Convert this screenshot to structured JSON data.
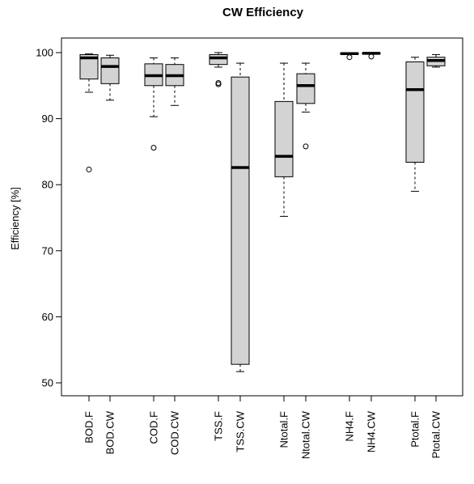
{
  "chart_data": {
    "type": "box",
    "title": "CW Efficiency",
    "xlabel": "",
    "ylabel": "Efficiency [%]",
    "ylim": [
      48,
      102
    ],
    "yticks": [
      50,
      60,
      70,
      80,
      90,
      100
    ],
    "box_color": "#d3d3d3",
    "categories": [
      "BOD.F",
      "BOD.CW",
      "COD.F",
      "COD.CW",
      "TSS.F",
      "TSS.CW",
      "Ntotal.F",
      "Ntotal.CW",
      "NH4.F",
      "NH4.CW",
      "Ptotal.F",
      "Ptotal.CW"
    ],
    "boxes": [
      {
        "min": 94.0,
        "q1": 96.0,
        "median": 99.2,
        "q3": 99.7,
        "max": 99.8,
        "outliers": [
          82.3
        ]
      },
      {
        "min": 92.8,
        "q1": 95.3,
        "median": 97.9,
        "q3": 99.2,
        "max": 99.6,
        "outliers": []
      },
      {
        "min": 90.3,
        "q1": 95.0,
        "median": 96.5,
        "q3": 98.3,
        "max": 99.2,
        "outliers": [
          85.6
        ]
      },
      {
        "min": 92.0,
        "q1": 95.0,
        "median": 96.5,
        "q3": 98.2,
        "max": 99.2,
        "outliers": []
      },
      {
        "min": 97.8,
        "q1": 98.2,
        "median": 99.2,
        "q3": 99.7,
        "max": 100.0,
        "outliers": [
          95.4,
          95.2
        ]
      },
      {
        "min": 51.7,
        "q1": 52.8,
        "median": 82.6,
        "q3": 96.3,
        "max": 98.4,
        "outliers": []
      },
      {
        "min": 75.2,
        "q1": 81.2,
        "median": 84.3,
        "q3": 92.6,
        "max": 98.4,
        "outliers": []
      },
      {
        "min": 91.0,
        "q1": 92.3,
        "median": 95.0,
        "q3": 96.8,
        "max": 98.4,
        "outliers": [
          85.8
        ]
      },
      {
        "min": 99.7,
        "q1": 99.75,
        "median": 99.85,
        "q3": 99.95,
        "max": 100.0,
        "outliers": [
          99.3
        ]
      },
      {
        "min": 99.75,
        "q1": 99.8,
        "median": 99.9,
        "q3": 99.95,
        "max": 100.0,
        "outliers": [
          99.4
        ]
      },
      {
        "min": 79.0,
        "q1": 83.4,
        "median": 94.4,
        "q3": 98.6,
        "max": 99.3,
        "outliers": []
      },
      {
        "min": 97.8,
        "q1": 98.0,
        "median": 98.8,
        "q3": 99.3,
        "max": 99.7,
        "outliers": []
      }
    ]
  }
}
